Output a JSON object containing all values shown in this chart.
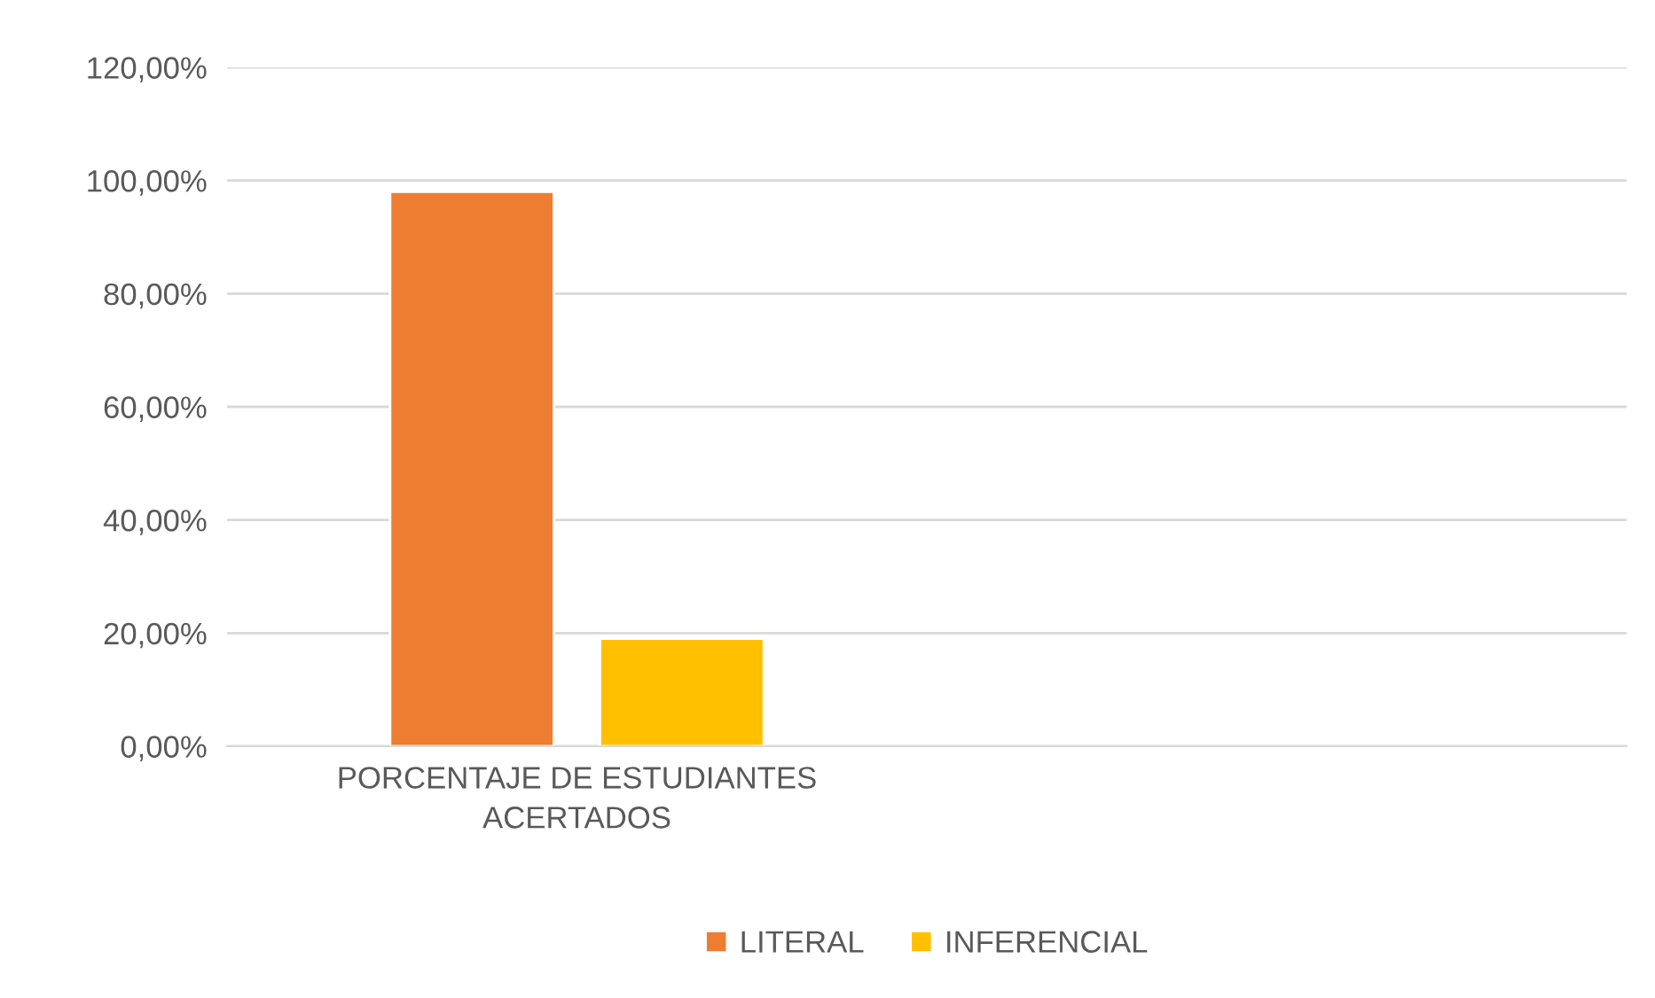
{
  "chart_data": {
    "type": "bar",
    "categories": [
      "PORCENTAJE DE ESTUDIANTES ACERTADOS",
      null
    ],
    "series": [
      {
        "name": "LITERAL",
        "color": "#ed7d31",
        "values": [
          98,
          null
        ]
      },
      {
        "name": "INFERENCIAL",
        "color": "#ffc000",
        "values": [
          19,
          null
        ]
      }
    ],
    "ylim": [
      0,
      120
    ],
    "yticks": [
      {
        "value": 0,
        "label": "0,00%"
      },
      {
        "value": 20,
        "label": "20,00%"
      },
      {
        "value": 40,
        "label": "40,00%"
      },
      {
        "value": 60,
        "label": "60,00%"
      },
      {
        "value": 80,
        "label": "80,00%"
      },
      {
        "value": 100,
        "label": "100,00%"
      },
      {
        "value": 120,
        "label": "120,00%"
      }
    ],
    "grid": "y",
    "legend": "bottom"
  }
}
